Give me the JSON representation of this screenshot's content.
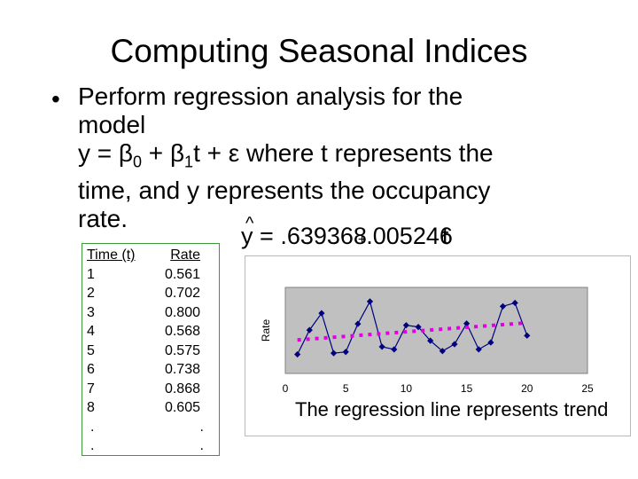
{
  "slide": {
    "title": "Computing Seasonal Indices",
    "bullet_marker": "•",
    "bullet_line1": "Perform regression analysis for the",
    "bullet_line2": "model",
    "bullet_line3_a": "y = β",
    "bullet_line3_sub0": "0",
    "bullet_line3_b": " + β",
    "bullet_line3_sub1": "1",
    "bullet_line3_c": "t + ε where t represents the",
    "bullet_line4": "time, and y represents the occupancy",
    "bullet_line5": "rate."
  },
  "formula": {
    "hat": "^",
    "y": "y",
    "equals": "=",
    "intercept": ".639368",
    "plus": "+",
    "slope": ".005246",
    "var": "t"
  },
  "table": {
    "header_time": "Time (t)",
    "header_rate": "Rate",
    "rows": [
      {
        "t": "1",
        "rate": "0.561"
      },
      {
        "t": "2",
        "rate": "0.702"
      },
      {
        "t": "3",
        "rate": "0.800"
      },
      {
        "t": "4",
        "rate": "0.568"
      },
      {
        "t": "5",
        "rate": "0.575"
      },
      {
        "t": "6",
        "rate": "0.738"
      },
      {
        "t": "7",
        "rate": "0.868"
      },
      {
        "t": "8",
        "rate": "0.605"
      }
    ],
    "ellipsis_rows": [
      {
        "t": ".",
        "rate": "."
      },
      {
        "t": ".",
        "rate": "."
      }
    ]
  },
  "chart_caption": "The regression line represents trend",
  "chart_data": {
    "type": "scatter",
    "ylabel": "Rate",
    "xlabel": "",
    "xlim": [
      0,
      25
    ],
    "xticks": [
      0,
      5,
      10,
      15,
      20,
      25
    ],
    "ylim": [
      0.45,
      0.95
    ],
    "plot_bg": "#c0c0c0",
    "series": [
      {
        "line": true,
        "color": "#000080",
        "x": [
          1,
          2,
          3,
          4,
          5,
          6,
          7,
          8,
          9,
          10,
          11,
          12,
          13,
          14,
          15,
          16,
          17,
          18,
          19,
          20
        ],
        "y": [
          0.561,
          0.702,
          0.8,
          0.568,
          0.575,
          0.738,
          0.868,
          0.605,
          0.59,
          0.73,
          0.72,
          0.64,
          0.58,
          0.62,
          0.74,
          0.59,
          0.63,
          0.84,
          0.86,
          0.67
        ]
      },
      {
        "line": false,
        "style": "dotted",
        "color": "#e000e0",
        "x": [
          1,
          20
        ],
        "y": [
          0.6446,
          0.7443
        ]
      }
    ]
  }
}
